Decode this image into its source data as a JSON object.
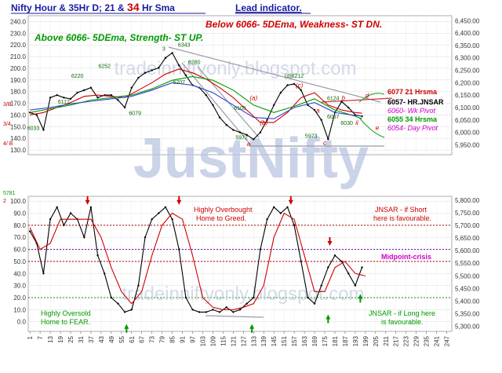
{
  "chart_data": [
    {
      "type": "line",
      "panel": "price",
      "title": "Nifty Hour & 35Hr D; 21 & 34 Hr Sma",
      "title_parts": [
        "Nifty Hour & 35Hr D; 21 & ",
        "34",
        " Hr Sma"
      ],
      "subtitle": "Lead indicator.",
      "left_axis_ticks": [
        130.0,
        140.0,
        150.0,
        160.0,
        170.0,
        180.0,
        190.0,
        200.0,
        210.0,
        220.0,
        230.0,
        240.0
      ],
      "left_axis_labels": [
        "130.0",
        "140.0",
        "150.0",
        "160.0",
        "170.0",
        "180.0",
        "190.0",
        "200.0",
        "210.0",
        "220.0",
        "230.0",
        "240.0"
      ],
      "right_axis_ticks": [
        5950,
        6000,
        6050,
        6100,
        6150,
        6200,
        6250,
        6300,
        6350,
        6400,
        6450
      ],
      "right_axis_labels": [
        "5,950.00",
        "6,000.00",
        "6,050.00",
        "6,100.00",
        "6,150.00",
        "6,200.00",
        "6,250.00",
        "6,300.00",
        "6,350.00",
        "6,400.00",
        "6,450.00"
      ],
      "ylim_right": [
        5950,
        6450
      ],
      "series": [
        {
          "name": "Nifty Hour",
          "color": "#000000",
          "x": [
            1,
            5,
            9,
            13,
            17,
            21,
            25,
            29,
            33,
            37,
            41,
            45,
            49,
            53,
            57,
            61,
            65,
            69,
            73,
            77,
            81,
            85,
            89,
            93,
            97,
            101,
            105,
            109,
            113,
            117,
            121,
            125,
            129,
            133,
            137,
            141,
            145,
            149,
            153,
            157,
            161,
            165,
            169,
            173,
            177,
            181,
            185,
            189,
            193,
            197
          ],
          "y": [
            6080,
            6070,
            6010,
            6140,
            6150,
            6140,
            6135,
            6160,
            6170,
            6180,
            6140,
            6150,
            6150,
            6130,
            6100,
            6180,
            6220,
            6240,
            6250,
            6260,
            6300,
            6320,
            6270,
            6230,
            6190,
            6180,
            6150,
            6110,
            6060,
            6030,
            6010,
            6000,
            5990,
            5972,
            6000,
            6050,
            6110,
            6160,
            6190,
            6195,
            6170,
            6110,
            6090,
            6050,
            5973,
            6080,
            6124,
            6100,
            6070,
            6065
          ]
        },
        {
          "name": "21 Hr Sma",
          "color": "#d00000",
          "x": [
            1,
            9,
            17,
            25,
            33,
            41,
            49,
            57,
            65,
            73,
            81,
            89,
            97,
            105,
            113,
            121,
            129,
            137,
            145,
            153,
            161,
            169,
            177,
            185,
            193,
            197
          ],
          "y": [
            6070,
            6080,
            6100,
            6120,
            6145,
            6150,
            6145,
            6140,
            6170,
            6200,
            6235,
            6255,
            6240,
            6215,
            6180,
            6140,
            6090,
            6040,
            6040,
            6080,
            6140,
            6160,
            6110,
            6090,
            6080,
            6077
          ]
        },
        {
          "name": "34 Hr Sma",
          "color": "#009900",
          "x": [
            1,
            13,
            25,
            37,
            49,
            61,
            73,
            85,
            97,
            109,
            121,
            133,
            145,
            157,
            169,
            181,
            193,
            197
          ],
          "y": [
            6080,
            6095,
            6110,
            6130,
            6140,
            6150,
            6175,
            6210,
            6225,
            6210,
            6170,
            6110,
            6080,
            6105,
            6135,
            6090,
            6065,
            6055
          ]
        },
        {
          "name": "5DEma",
          "color": "#3344cc",
          "x": [
            1,
            13,
            25,
            37,
            49,
            61,
            73,
            85,
            97,
            109,
            121,
            133,
            145,
            157,
            169,
            181,
            193,
            197
          ],
          "y": [
            6090,
            6100,
            6115,
            6125,
            6135,
            6145,
            6170,
            6200,
            6190,
            6160,
            6110,
            6060,
            6055,
            6100,
            6120,
            6080,
            6068,
            6066
          ]
        }
      ],
      "price_labels": [
        {
          "text": "6033",
          "x": 3,
          "y": 6010
        },
        {
          "text": "6117",
          "x": 21,
          "y": 6115
        },
        {
          "text": "6220",
          "x": 29,
          "y": 6220
        },
        {
          "text": "6252",
          "x": 45,
          "y": 6260
        },
        {
          "text": "6079",
          "x": 63,
          "y": 6070
        },
        {
          "text": "3",
          "x": 80,
          "y": 6330
        },
        {
          "text": "6343",
          "x": 92,
          "y": 6345
        },
        {
          "text": "6280",
          "x": 98,
          "y": 6275
        },
        {
          "text": "6207",
          "x": 89,
          "y": 6195
        },
        {
          "text": "6105",
          "x": 125,
          "y": 6090
        },
        {
          "text": "5972",
          "x": 126,
          "y": 5972
        },
        {
          "text": "(d)6212",
          "x": 157,
          "y": 6220
        },
        {
          "text": "6124",
          "x": 180,
          "y": 6130
        },
        {
          "text": "6057",
          "x": 180,
          "y": 6055
        },
        {
          "text": "5973",
          "x": 167,
          "y": 5978
        },
        {
          "text": "6030",
          "x": 188,
          "y": 6030
        }
      ],
      "wave_labels": [
        {
          "text": "(a)",
          "x": 133,
          "y": 6130
        },
        {
          "text": "(b)",
          "x": 139,
          "y": 6030
        },
        {
          "text": "(c)",
          "x": 160,
          "y": 6180
        },
        {
          "text": "a",
          "x": 171,
          "y": 6080
        },
        {
          "text": "b",
          "x": 186,
          "y": 6130
        },
        {
          "text": "c",
          "x": 175,
          "y": 5950
        },
        {
          "text": "d",
          "x": 200,
          "y": 6140
        },
        {
          "text": "e",
          "x": 206,
          "y": 6010
        },
        {
          "text": "a",
          "x": 130,
          "y": 5945
        },
        {
          "text": "ii",
          "x": 194,
          "y": 6030
        }
      ],
      "annotations": [
        {
          "text": "Below 6066-  5DEma,  Weakness- ST DN.",
          "color": "#d00000"
        },
        {
          "text": "Above 6066-  5DEma,  Strength- ST UP.",
          "color": "#009900"
        }
      ],
      "level_labels": [
        {
          "text": "6077 21 Hrsma",
          "color": "#cc0000"
        },
        {
          "text": "6057- HR.JNSAR",
          "color": "#000000"
        },
        {
          "text": "6060- Wk Pivot",
          "color": "#cc00cc"
        },
        {
          "text": "6055 34 Hrsma",
          "color": "#009900"
        },
        {
          "text": "6054- Day Pivot",
          "color": "#cc00cc"
        }
      ],
      "left_small_labels": [
        "3/B",
        "3/4",
        "4/ B"
      ]
    },
    {
      "type": "line",
      "panel": "oscillator",
      "left_axis_ticks": [
        0.0,
        10.0,
        20.0,
        30.0,
        40.0,
        50.0,
        60.0,
        70.0,
        80.0,
        90.0,
        100.0
      ],
      "left_axis_labels": [
        "0.0",
        "10.0",
        "20.0",
        "30.0",
        "40.0",
        "50.0",
        "60.0",
        "70.0",
        "80.0",
        "90.0",
        "100.0"
      ],
      "right_axis_ticks": [
        5300,
        5350,
        5400,
        5450,
        5500,
        5550,
        5600,
        5650,
        5700,
        5750,
        5800
      ],
      "right_axis_labels": [
        "5,300.00",
        "5,350.00",
        "5,400.00",
        "5,450.00",
        "5,500.00",
        "5,550.00",
        "5,600.00",
        "5,650.00",
        "5,700.00",
        "5,750.00",
        "5,800.00"
      ],
      "ylim": [
        0,
        100
      ],
      "x_ticks": [
        1,
        7,
        13,
        19,
        25,
        31,
        37,
        43,
        49,
        55,
        61,
        67,
        73,
        79,
        85,
        91,
        97,
        103,
        109,
        115,
        121,
        127,
        133,
        139,
        145,
        151,
        157,
        163,
        169,
        175,
        181,
        187,
        193,
        199,
        205,
        211,
        217,
        223,
        229,
        235,
        241,
        247
      ],
      "x_tick_labels": [
        "1",
        "7",
        "13",
        "19",
        "25",
        "31",
        "37",
        "43",
        "49",
        "55",
        "61",
        "67",
        "73",
        "79",
        "85",
        "91",
        "97",
        "103",
        "109",
        "115",
        "121",
        "127",
        "133",
        "139",
        "145",
        "151",
        "157",
        "163",
        "169",
        "175",
        "181",
        "187",
        "193",
        "199",
        "205",
        "211",
        "217",
        "223",
        "229",
        "235",
        "241",
        "247"
      ],
      "reference_lines": [
        {
          "value": 80,
          "color": "#aa0000"
        },
        {
          "value": 60,
          "color": "#6600aa"
        },
        {
          "value": 50,
          "color": "#aa0000"
        },
        {
          "value": 20,
          "color": "#009900"
        }
      ],
      "series": [
        {
          "name": "35Hr D",
          "color": "#000000",
          "x": [
            1,
            5,
            9,
            13,
            17,
            21,
            25,
            29,
            33,
            37,
            41,
            45,
            49,
            53,
            57,
            61,
            65,
            69,
            73,
            77,
            81,
            85,
            89,
            93,
            97,
            101,
            105,
            109,
            113,
            117,
            121,
            125,
            129,
            133,
            137,
            141,
            145,
            149,
            153,
            157,
            161,
            165,
            169,
            173,
            177,
            181,
            185,
            189,
            193,
            197
          ],
          "y": [
            75,
            65,
            40,
            85,
            95,
            80,
            90,
            85,
            70,
            95,
            55,
            40,
            20,
            15,
            8,
            10,
            30,
            70,
            85,
            90,
            95,
            85,
            60,
            20,
            10,
            8,
            8,
            10,
            8,
            12,
            8,
            10,
            15,
            20,
            60,
            85,
            95,
            90,
            95,
            80,
            50,
            20,
            15,
            30,
            45,
            55,
            50,
            40,
            30,
            45
          ]
        },
        {
          "name": "Signal",
          "color": "#d00000",
          "x": [
            1,
            7,
            13,
            19,
            25,
            31,
            37,
            43,
            49,
            55,
            61,
            67,
            73,
            79,
            85,
            91,
            97,
            103,
            109,
            115,
            121,
            127,
            133,
            139,
            145,
            151,
            157,
            163,
            169,
            175,
            181,
            187,
            193,
            199
          ],
          "y": [
            78,
            60,
            65,
            85,
            85,
            85,
            85,
            70,
            45,
            25,
            15,
            25,
            55,
            80,
            90,
            85,
            55,
            20,
            12,
            10,
            10,
            12,
            15,
            30,
            70,
            90,
            85,
            55,
            25,
            25,
            45,
            50,
            40,
            38
          ]
        }
      ],
      "annotations": [
        {
          "text": "Highly Overbought",
          "color": "#d00000"
        },
        {
          "text": "Home to Greed.",
          "color": "#d00000"
        },
        {
          "text": "JNSAR - if Short",
          "color": "#d00000"
        },
        {
          "text": "here is favourable.",
          "color": "#d00000"
        },
        {
          "text": "Midpoint-crisis",
          "color": "#cc00cc"
        },
        {
          "text": "Highly Oversold",
          "color": "#009900"
        },
        {
          "text": "Home to FEAR.",
          "color": "#009900"
        },
        {
          "text": "JNSAR - if Long here",
          "color": "#009900"
        },
        {
          "text": "is favourable.",
          "color": "#009900"
        }
      ],
      "left_small_labels": [
        "5781",
        "2"
      ]
    }
  ],
  "watermarks": [
    "JustNifty",
    "tradeinniftyonly.blogspot.com",
    "tradeinniftyonly.blogspot.com"
  ],
  "colors": {
    "watermark": "#aab8d8",
    "title": "#1a1aa0",
    "red": "#d00000",
    "green": "#009900",
    "magenta": "#cc00cc",
    "grid": "#d8d8d8"
  }
}
